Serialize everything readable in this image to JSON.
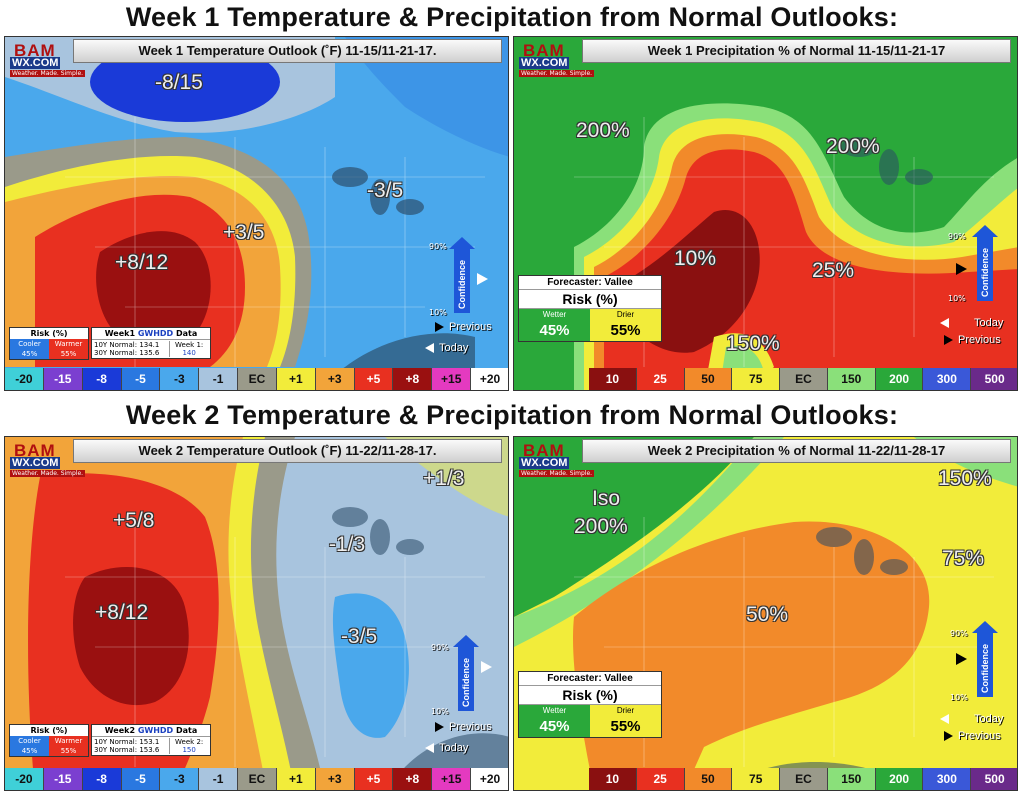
{
  "titles": {
    "week1": "Week 1 Temperature & Precipitation from Normal Outlooks:",
    "week2": "Week 2 Temperature & Precipitation from Normal Outlooks:"
  },
  "logo": {
    "line1": "BAM",
    "line2": "WX.COM",
    "tagline": "Weather. Made. Simple."
  },
  "panels": {
    "w1_temp": {
      "header": "Week 1 Temperature Outlook (˚F) 11-15/11-21-17.",
      "labels": [
        "-8/15",
        "+3/5",
        "-3/5",
        "+8/12"
      ],
      "risk": {
        "title": "Risk (%)",
        "cooler": "Cooler",
        "warmer": "Warmer",
        "cooler_pct": "45%",
        "warmer_pct": "55%"
      },
      "gwhdd": {
        "title_prefix": "Week1",
        "title_brand": "GWHDD",
        "title_suffix": "Data",
        "n10": "10Y Normal: 134.1",
        "n30": "30Y Normal: 135.6",
        "week_label": "Week 1:",
        "week_value": "140"
      }
    },
    "w1_precip": {
      "header": "Week 1 Precipitation % of Normal 11-15/11-21-17",
      "labels": [
        "200%",
        "200%",
        "10%",
        "25%",
        "150%"
      ],
      "forecaster": {
        "line": "Forecaster: Vallee",
        "risk": "Risk (%)",
        "wetter": "Wetter",
        "drier": "Drier",
        "wetter_pct": "45%",
        "drier_pct": "55%"
      }
    },
    "w2_temp": {
      "header": "Week 2 Temperature Outlook (˚F) 11-22/11-28-17.",
      "labels": [
        "+1/3",
        "+5/8",
        "-1/3",
        "+8/12",
        "-3/5"
      ],
      "risk": {
        "title": "Risk (%)",
        "cooler": "Cooler",
        "warmer": "Warmer",
        "cooler_pct": "45%",
        "warmer_pct": "55%"
      },
      "gwhdd": {
        "title_prefix": "Week2",
        "title_brand": "GWHDD",
        "title_suffix": "Data",
        "n10": "10Y Normal: 153.1",
        "n30": "30Y Normal: 153.6",
        "week_label": "Week 2:",
        "week_value": "150"
      }
    },
    "w2_precip": {
      "header": "Week 2 Precipitation % of Normal 11-22/11-28-17",
      "labels": [
        "Iso",
        "200%",
        "150%",
        "75%",
        "50%"
      ],
      "forecaster": {
        "line": "Forecaster: Vallee",
        "risk": "Risk (%)",
        "wetter": "Wetter",
        "drier": "Drier",
        "wetter_pct": "45%",
        "drier_pct": "55%"
      }
    }
  },
  "nav": {
    "previous": "Previous",
    "today": "Today"
  },
  "confidence": {
    "label": "Confidence",
    "high": "90%",
    "low": "10%"
  },
  "temp_legend": {
    "values": [
      "-20",
      "-15",
      "-8",
      "-5",
      "-3",
      "-1",
      "EC",
      "+1",
      "+3",
      "+5",
      "+8",
      "+15",
      "+20"
    ],
    "colors": [
      "#3fd0d8",
      "#7b3fd0",
      "#1a3ad8",
      "#2a78e0",
      "#4aa8ec",
      "#a8c4de",
      "#9a9a8a",
      "#f2ec3a",
      "#f2a43a",
      "#e83020",
      "#9a1010",
      "#e43ac0",
      "#ffffff"
    ]
  },
  "precip_legend": {
    "values": [
      "10",
      "25",
      "50",
      "75",
      "EC",
      "150",
      "200",
      "300",
      "500"
    ],
    "colors": [
      "#8a1010",
      "#e83020",
      "#f28a2a",
      "#f2ec3a",
      "#9a9a8a",
      "#8ae07a",
      "#2aa83a",
      "#3a58d8",
      "#6a2a8a"
    ]
  }
}
